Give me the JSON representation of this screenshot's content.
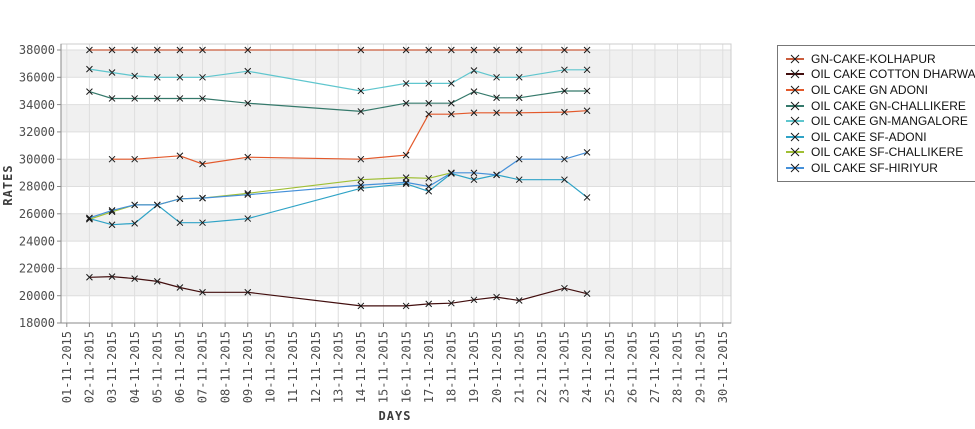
{
  "page": {
    "background": "#ffffff"
  },
  "chart_data": {
    "type": "line",
    "title": "",
    "xlabel": "DAYS",
    "ylabel": "RATES",
    "grid": true,
    "legend_position": "top-right",
    "plot_band_fill": "#f0f0f0",
    "gray_band_tops": [
      38000,
      34000,
      30000,
      26000,
      22000
    ],
    "y_axis": {
      "min": 18000,
      "max": 38000,
      "tick_step": 2000,
      "ticks": [
        38000,
        36000,
        34000,
        32000,
        30000,
        28000,
        26000,
        24000,
        22000,
        20000,
        18000
      ]
    },
    "x_axis": {
      "tick_dates": [
        "01-11-2015",
        "02-11-2015",
        "03-11-2015",
        "04-11-2015",
        "05-11-2015",
        "06-11-2015",
        "07-11-2015",
        "08-11-2015",
        "09-11-2015",
        "10-11-2015",
        "11-11-2015",
        "12-11-2015",
        "13-11-2015",
        "14-11-2015",
        "15-11-2015",
        "16-11-2015",
        "17-11-2015",
        "18-11-2015",
        "19-11-2015",
        "20-11-2015",
        "21-11-2015",
        "22-11-2015",
        "23-11-2015",
        "24-11-2015",
        "25-11-2015",
        "26-11-2015",
        "27-11-2015",
        "28-11-2015",
        "29-11-2015",
        "30-11-2015"
      ]
    },
    "data_days": [
      2,
      3,
      4,
      5,
      6,
      7,
      9,
      14,
      16,
      17,
      18,
      19,
      20,
      21,
      23,
      24
    ],
    "data_dates": [
      "02-11-2015",
      "03-11-2015",
      "04-11-2015",
      "05-11-2015",
      "06-11-2015",
      "07-11-2015",
      "09-11-2015",
      "14-11-2015",
      "16-11-2015",
      "17-11-2015",
      "18-11-2015",
      "19-11-2015",
      "20-11-2015",
      "21-11-2015",
      "23-11-2015",
      "24-11-2015"
    ],
    "marker": {
      "shape": "x",
      "color": "#1a1a1a"
    },
    "series": [
      {
        "name": "GN-CAKE-KOLHAPUR",
        "color": "#cb5d3d",
        "values": [
          38000,
          38000,
          38000,
          38000,
          38000,
          38000,
          38000,
          38000,
          38000,
          38000,
          38000,
          38000,
          38000,
          38000,
          38000,
          38000
        ]
      },
      {
        "name": "OIL CAKE COTTON DHARWAD",
        "color": "#420e0e",
        "values": [
          21350,
          21400,
          21250,
          21050,
          20600,
          20250,
          20250,
          19250,
          19250,
          19400,
          19450,
          19700,
          19900,
          19650,
          20550,
          20150
        ]
      },
      {
        "name": "OIL CAKE GN ADONI",
        "color": "#e3592b",
        "values": [
          null,
          30000,
          30000,
          null,
          30250,
          29650,
          30150,
          30000,
          30300,
          33300,
          33300,
          33400,
          33400,
          33400,
          33450,
          33550
        ]
      },
      {
        "name": "OIL CAKE GN-CHALLIKERE",
        "color": "#35796b",
        "values": [
          34950,
          34450,
          34450,
          34450,
          34450,
          34450,
          34100,
          33500,
          34100,
          34100,
          34100,
          34950,
          34500,
          34500,
          35000,
          35000
        ]
      },
      {
        "name": "OIL CAKE GN-MANGALORE",
        "color": "#5fc6ce",
        "values": [
          36600,
          36350,
          36100,
          36000,
          36000,
          36000,
          36450,
          35000,
          35550,
          35550,
          35550,
          36500,
          36000,
          36000,
          36550,
          36550
        ]
      },
      {
        "name": "OIL CAKE SF-ADONI",
        "color": "#2fa3c6",
        "values": [
          25650,
          25200,
          25300,
          26650,
          25350,
          25350,
          25650,
          27870,
          28200,
          27650,
          28950,
          28500,
          28850,
          28500,
          28500,
          27200
        ]
      },
      {
        "name": "OIL CAKE SF-CHALLIKERE",
        "color": "#a0bf35",
        "values": [
          25600,
          26150,
          26650,
          26650,
          27100,
          27150,
          27500,
          28500,
          28650,
          28600,
          29000,
          null,
          null,
          null,
          null,
          null
        ]
      },
      {
        "name": "OIL CAKE SF-HIRIYUR",
        "color": "#4590d9",
        "values": [
          25700,
          26250,
          26650,
          26650,
          27100,
          27150,
          27400,
          28100,
          28300,
          28000,
          29000,
          29000,
          28850,
          30000,
          30000,
          30500
        ]
      }
    ]
  }
}
